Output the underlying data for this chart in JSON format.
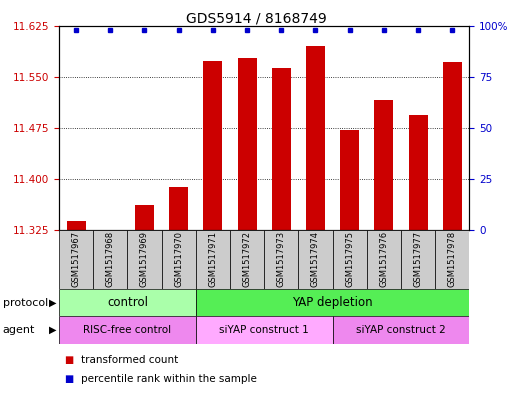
{
  "title": "GDS5914 / 8168749",
  "samples": [
    "GSM1517967",
    "GSM1517968",
    "GSM1517969",
    "GSM1517970",
    "GSM1517971",
    "GSM1517972",
    "GSM1517973",
    "GSM1517974",
    "GSM1517975",
    "GSM1517976",
    "GSM1517977",
    "GSM1517978"
  ],
  "bar_values": [
    11.338,
    11.325,
    11.362,
    11.388,
    11.573,
    11.578,
    11.562,
    11.595,
    11.471,
    11.515,
    11.493,
    11.571
  ],
  "percentile_values": [
    98,
    98,
    98,
    98,
    98,
    98,
    98,
    98,
    98,
    98,
    98,
    98
  ],
  "ymin": 11.325,
  "ymax": 11.625,
  "yticks": [
    11.325,
    11.4,
    11.475,
    11.55,
    11.625
  ],
  "y2ticks": [
    0,
    25,
    50,
    75,
    100
  ],
  "bar_color": "#cc0000",
  "dot_color": "#0000cc",
  "protocol_groups": [
    {
      "label": "control",
      "start": 0,
      "end": 3,
      "color": "#aaffaa"
    },
    {
      "label": "YAP depletion",
      "start": 4,
      "end": 11,
      "color": "#55ee55"
    }
  ],
  "agent_groups": [
    {
      "label": "RISC-free control",
      "start": 0,
      "end": 3,
      "color": "#ee88ee"
    },
    {
      "label": "siYAP construct 1",
      "start": 4,
      "end": 7,
      "color": "#ffaaff"
    },
    {
      "label": "siYAP construct 2",
      "start": 8,
      "end": 11,
      "color": "#ee88ee"
    }
  ],
  "protocol_label": "protocol",
  "agent_label": "agent",
  "legend1": "transformed count",
  "legend2": "percentile rank within the sample",
  "bar_width": 0.55,
  "title_fontsize": 10,
  "tick_fontsize": 7.5,
  "sample_fontsize": 6,
  "bar_color_left": "#cc0000",
  "bar_color_right": "#0000cc",
  "sample_box_color": "#cccccc",
  "n": 12
}
